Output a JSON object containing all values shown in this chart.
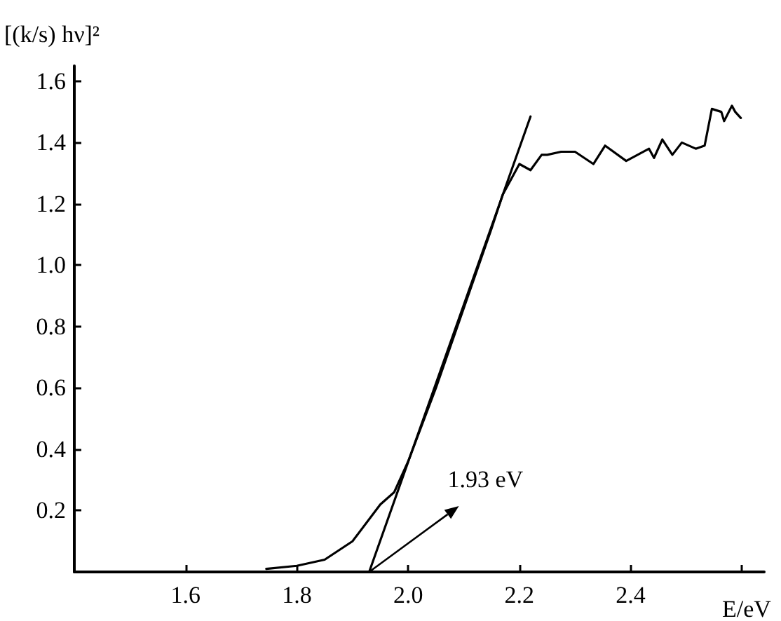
{
  "chart_data": {
    "type": "line",
    "ylabel": "[(k/s) hν]²",
    "xlabel": "E/eV",
    "xlim": [
      1.4,
      2.64
    ],
    "ylim": [
      0,
      1.65
    ],
    "xticks": [
      1.6,
      1.8,
      {
        "value": 2.0,
        "label": "2.0"
      },
      2.2,
      2.4,
      {
        "value": 2.6,
        "label": null
      }
    ],
    "yticks": [
      0.2,
      0.4,
      0.6,
      0.8,
      {
        "value": 1.0,
        "label": "1.0"
      },
      1.2,
      1.4,
      1.6
    ],
    "grid": false,
    "marker": "none",
    "line_style": "solid",
    "annotations": [
      {
        "text": "1.93 eV",
        "x": 1.93,
        "y": 0
      }
    ],
    "series": [
      {
        "color": "#000000",
        "x": [
          1.745,
          1.8,
          1.85,
          1.9,
          1.95,
          1.975,
          2.0,
          2.05,
          2.1,
          2.15,
          2.17,
          2.2,
          2.22,
          2.24,
          2.25,
          2.275,
          2.3,
          2.333,
          2.354,
          2.392,
          2.433,
          2.442,
          2.457,
          2.475,
          2.492,
          2.517,
          2.533,
          2.546,
          2.563,
          2.568,
          2.582,
          2.588,
          2.598
        ],
        "values": [
          0.01,
          0.02,
          0.04,
          0.1,
          0.22,
          0.26,
          0.36,
          0.6,
          0.86,
          1.12,
          1.23,
          1.33,
          1.31,
          1.36,
          1.36,
          1.37,
          1.37,
          1.33,
          1.39,
          1.34,
          1.38,
          1.35,
          1.41,
          1.36,
          1.4,
          1.38,
          1.39,
          1.51,
          1.5,
          1.47,
          1.52,
          1.5,
          1.48
        ]
      },
      {
        "color": "#000000",
        "x": [
          1.93,
          2.22
        ],
        "values": [
          0,
          1.485
        ]
      }
    ]
  }
}
